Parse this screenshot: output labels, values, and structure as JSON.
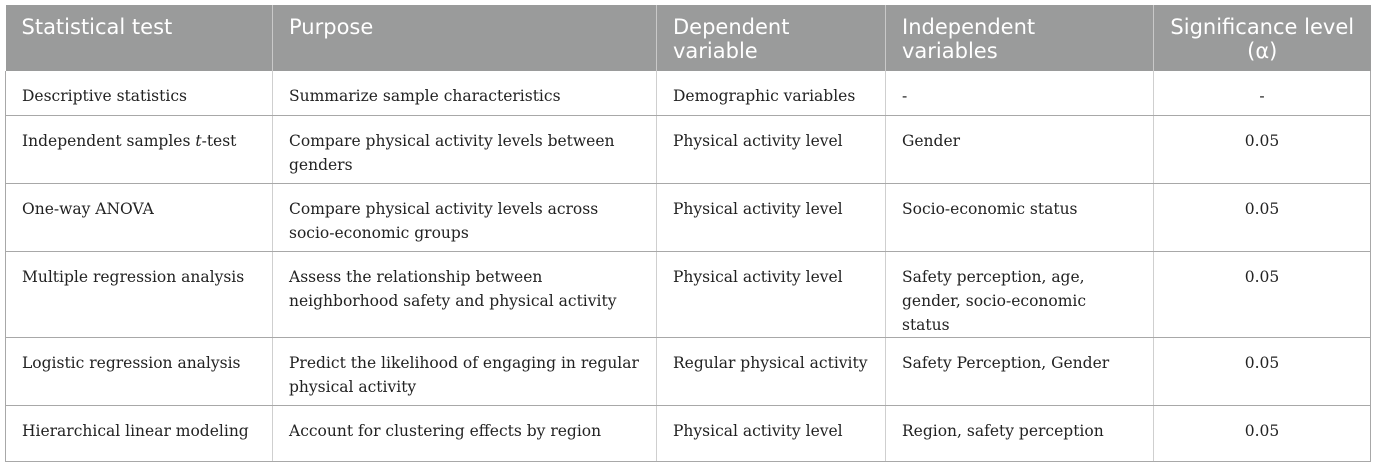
{
  "headers": {
    "test": "Statistical test",
    "purpose": "Purpose",
    "dependent": "Dependent variable",
    "independent": "Independent variables",
    "significance": "Significance level (α)"
  },
  "rows": [
    {
      "test": "Descriptive statistics",
      "purpose": "Summarize sample characteristics",
      "dependent": "Demographic variables",
      "independent": "-",
      "alpha": "-"
    },
    {
      "test_pre": "Independent samples ",
      "test_italic": "t",
      "test_post": "-test",
      "purpose": "Compare physical activity levels between genders",
      "dependent": "Physical activity level",
      "independent": "Gender",
      "alpha": "0.05"
    },
    {
      "test": "One-way ANOVA",
      "purpose": "Compare physical activity levels across socio-economic groups",
      "dependent": "Physical activity level",
      "independent": "Socio-economic status",
      "alpha": "0.05"
    },
    {
      "test": "Multiple regression analysis",
      "purpose": "Assess the relationship between neighborhood safety and physical activity",
      "dependent": "Physical activity level",
      "independent": "Safety perception, age, gender, socio-economic status",
      "alpha": "0.05"
    },
    {
      "test": "Logistic regression analysis",
      "purpose": "Predict the likelihood of engaging in regular physical activity",
      "dependent": "Regular physical activity",
      "independent": "Safety Perception, Gender",
      "alpha": "0.05"
    },
    {
      "test": "Hierarchical linear modeling",
      "purpose": "Account for clustering effects by region",
      "dependent": "Physical activity level",
      "independent": "Region, safety perception",
      "alpha": "0.05"
    }
  ]
}
